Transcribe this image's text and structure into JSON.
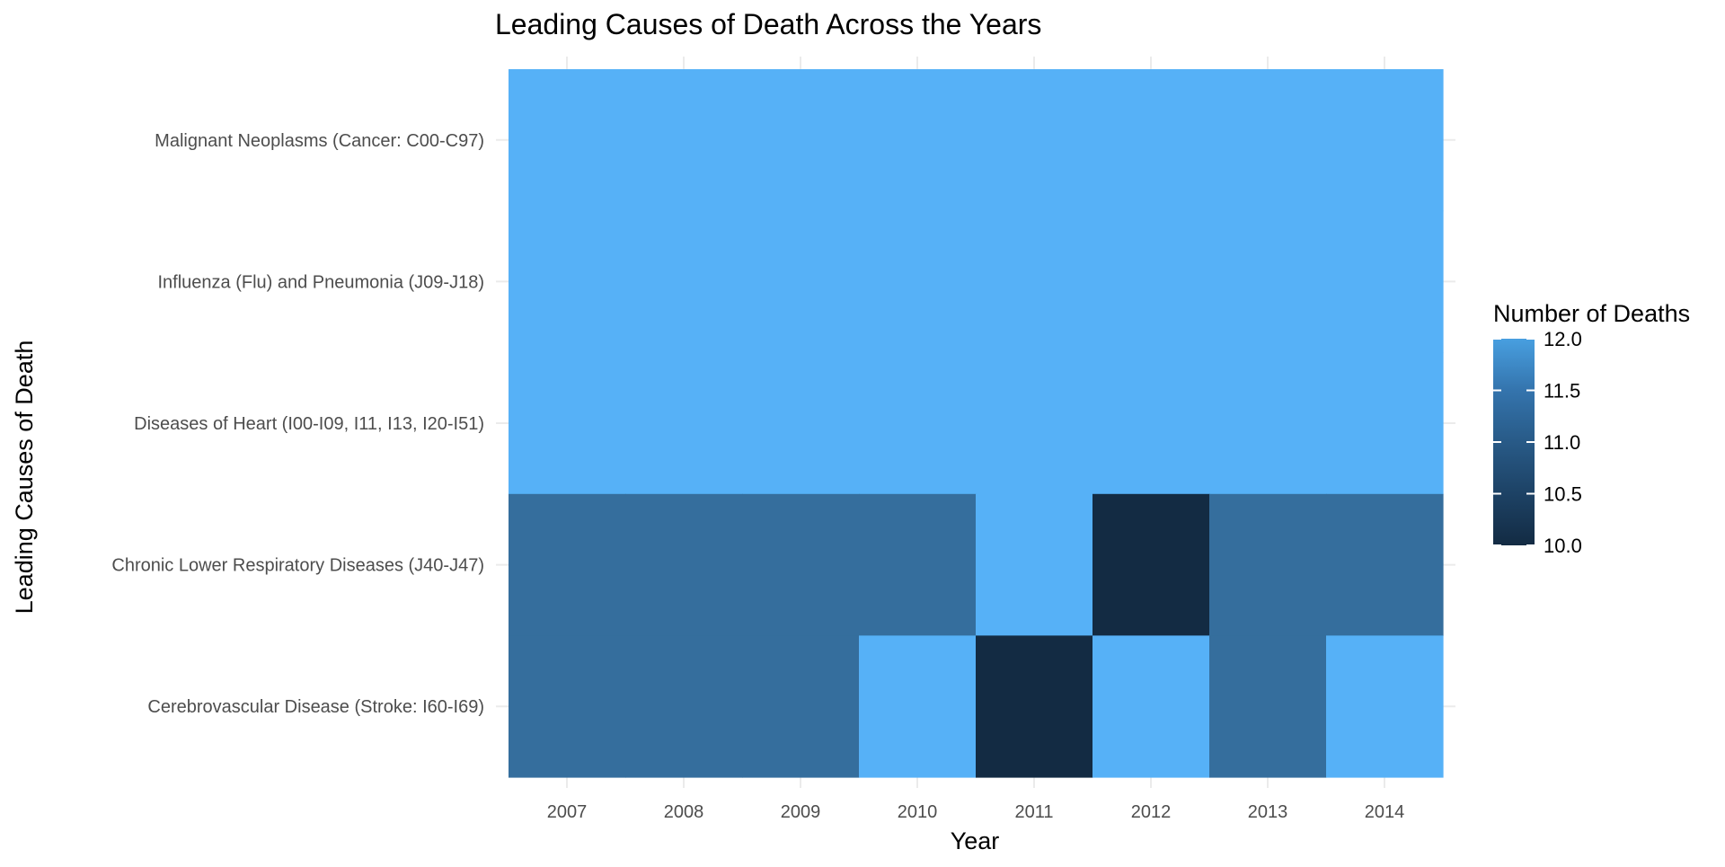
{
  "chart_data": {
    "type": "heatmap",
    "title": "Leading Causes of Death Across the Years",
    "xlabel": "Year",
    "ylabel": "Leading Causes of Death",
    "x": [
      "2007",
      "2008",
      "2009",
      "2010",
      "2011",
      "2012",
      "2013",
      "2014"
    ],
    "y": [
      "Malignant Neoplasms (Cancer: C00-C97)",
      "Influenza (Flu) and Pneumonia (J09-J18)",
      "Diseases of Heart (I00-I09, I11, I13, I20-I51)",
      "Chronic Lower Respiratory Diseases (J40-J47)",
      "Cerebrovascular Disease (Stroke: I60-I69)"
    ],
    "values": [
      [
        12,
        12,
        12,
        12,
        12,
        12,
        12,
        12
      ],
      [
        12,
        12,
        12,
        12,
        12,
        12,
        12,
        12
      ],
      [
        12,
        12,
        12,
        12,
        12,
        12,
        12,
        12
      ],
      [
        11,
        11,
        11,
        11,
        12,
        10,
        11,
        11
      ],
      [
        11,
        11,
        11,
        12,
        10,
        12,
        11,
        12
      ]
    ],
    "grid": true,
    "legend": {
      "title": "Number of Deaths",
      "position": "right",
      "range": [
        10,
        12
      ],
      "ticks": [
        "12.0",
        "11.5",
        "11.0",
        "10.5",
        "10.0"
      ],
      "low_color": "#132B43",
      "high_color": "#56B1F7"
    }
  }
}
